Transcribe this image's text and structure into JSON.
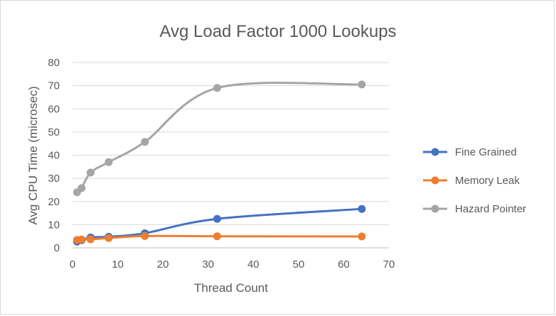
{
  "chart_data": {
    "type": "line",
    "title": "Avg Load Factor 1000 Lookups",
    "xlabel": "Thread Count",
    "ylabel": "Avg CPU Time (microsec)",
    "xlim": [
      0,
      70
    ],
    "ylim": [
      0,
      80
    ],
    "xticks": [
      "0",
      "10",
      "20",
      "30",
      "40",
      "50",
      "60",
      "70"
    ],
    "yticks": [
      "0",
      "10",
      "20",
      "30",
      "40",
      "50",
      "60",
      "70",
      "80"
    ],
    "x": [
      1,
      2,
      4,
      8,
      16,
      32,
      64
    ],
    "grid": "horizontal",
    "legend_position": "right",
    "series": [
      {
        "name": "Fine Grained",
        "color": "#4472C4",
        "values": [
          2.7,
          3.3,
          4.5,
          4.8,
          6.3,
          12.5,
          16.8
        ]
      },
      {
        "name": "Memory Leak",
        "color": "#ED7D31",
        "values": [
          3.4,
          3.6,
          3.7,
          4.2,
          5.1,
          5.0,
          4.9
        ]
      },
      {
        "name": "Hazard Pointer",
        "color": "#A5A5A5",
        "values": [
          24.0,
          25.8,
          32.5,
          37.0,
          45.7,
          69.0,
          70.5
        ]
      }
    ]
  }
}
